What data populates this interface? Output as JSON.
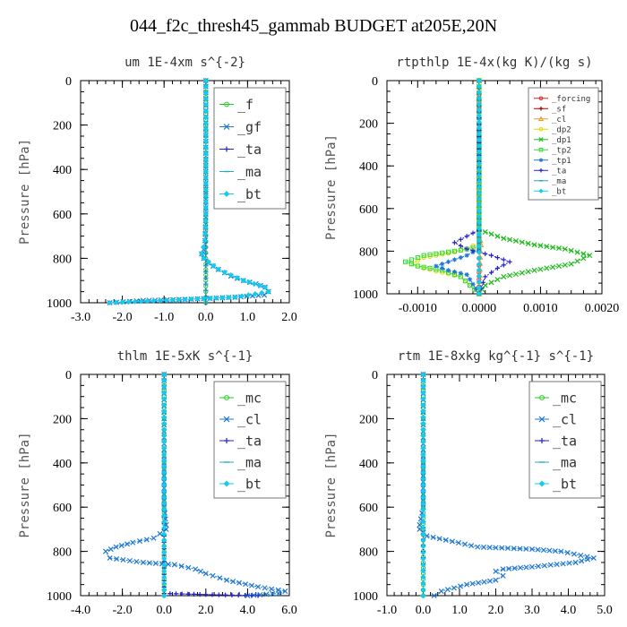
{
  "figure_title": "044_f2c_thresh45_gammab  BUDGET at205E,20N",
  "chart_data": [
    {
      "type": "line",
      "title": "um  1E-4xm s^{-2}",
      "ylabel": "Pressure [hPa]",
      "xlabel": "",
      "xlim": [
        -3.0,
        2.0
      ],
      "ylim": [
        1000,
        0
      ],
      "xticks": [
        -3.0,
        -2.0,
        -1.0,
        0.0,
        1.0,
        2.0
      ],
      "xtick_labels": [
        "-3.0",
        "-2.0",
        "-1.0",
        "0.0",
        "1.0",
        "2.0"
      ],
      "yticks": [
        0,
        200,
        400,
        600,
        800,
        1000
      ],
      "ytick_labels": [
        "0",
        "200",
        "400",
        "600",
        "800",
        "1000"
      ],
      "legend": [
        "_f",
        "_gf",
        "_ta",
        "_ma",
        "_bt"
      ],
      "legend_placement": "top-right",
      "legend_font": "large",
      "series": [
        {
          "name": "_f",
          "color": "#22cc22",
          "marker": "circle",
          "x": [
            0,
            0,
            0,
            0,
            0,
            0,
            0,
            0,
            0,
            0,
            0
          ],
          "y": [
            0,
            100,
            200,
            300,
            400,
            500,
            600,
            700,
            800,
            900,
            1000
          ]
        },
        {
          "name": "_gf",
          "color": "#1f78d1",
          "marker": "cross",
          "x": [
            0,
            0,
            0,
            -0.02,
            -0.05,
            -0.1,
            -0.05,
            0.05,
            0.3,
            0.6,
            0.9,
            1.2,
            1.42,
            1.5,
            1.4,
            0.7,
            -0.5,
            -1.5,
            -2.3
          ],
          "y": [
            0,
            300,
            600,
            720,
            760,
            780,
            800,
            820,
            850,
            880,
            900,
            915,
            930,
            950,
            965,
            975,
            985,
            990,
            1000
          ]
        },
        {
          "name": "_ta",
          "color": "#2222cc",
          "marker": "plus",
          "x": [
            0,
            0,
            0,
            0,
            0
          ],
          "y": [
            0,
            250,
            500,
            750,
            1000
          ]
        },
        {
          "name": "_ma",
          "color": "#22aacc",
          "marker": "dash",
          "x": [
            0,
            0,
            0,
            0,
            0
          ],
          "y": [
            0,
            250,
            500,
            750,
            1000
          ]
        },
        {
          "name": "_bt",
          "color": "#11ccee",
          "marker": "diamond",
          "x": [
            0,
            0,
            0,
            -0.02,
            -0.1,
            -0.05,
            0.3,
            0.9,
            1.42,
            1.5,
            0.7,
            -2.3
          ],
          "y": [
            0,
            300,
            600,
            720,
            780,
            800,
            850,
            900,
            930,
            950,
            975,
            1000
          ]
        }
      ]
    },
    {
      "type": "line",
      "title": "rtpthlp  1E-4x(kg K)/(kg s)",
      "ylabel": "Pressure [hPa]",
      "xlabel": "",
      "xlim": [
        -0.0015,
        0.002
      ],
      "ylim": [
        1000,
        0
      ],
      "xticks": [
        -0.001,
        0.0,
        0.001,
        0.002
      ],
      "xtick_labels": [
        "-0.0010",
        "0.0000",
        "0.0010",
        "0.0020"
      ],
      "yticks": [
        0,
        200,
        400,
        600,
        800,
        1000
      ],
      "ytick_labels": [
        "0",
        "200",
        "400",
        "600",
        "800",
        "1000"
      ],
      "legend": [
        "_forcing",
        "_sf",
        "_cl",
        "_dp2",
        "_dp1",
        "_tp2",
        "_tp1",
        "_ta",
        "_ma",
        "_bt"
      ],
      "legend_placement": "top-right",
      "legend_font": "small",
      "series": [
        {
          "name": "_forcing",
          "color": "#dd2222",
          "marker": "circle",
          "x": [
            0,
            0,
            0,
            0,
            0,
            0,
            0,
            0,
            0,
            0,
            0
          ],
          "y": [
            0,
            100,
            200,
            300,
            400,
            500,
            600,
            700,
            800,
            900,
            1000
          ]
        },
        {
          "name": "_sf",
          "color": "#aa0000",
          "marker": "plus",
          "x": [
            0,
            0,
            0,
            0,
            0
          ],
          "y": [
            0,
            250,
            500,
            750,
            1000
          ]
        },
        {
          "name": "_cl",
          "color": "#ee9922",
          "marker": "triangle",
          "x": [
            0,
            0,
            0,
            0,
            0,
            2e-05,
            3e-05,
            2e-05,
            0
          ],
          "y": [
            0,
            250,
            500,
            700,
            730,
            750,
            770,
            800,
            1000
          ]
        },
        {
          "name": "_dp2",
          "color": "#dddd00",
          "marker": "circle",
          "x": [
            0,
            0,
            -0.0002,
            -0.0005,
            -0.0009,
            -0.0011,
            -0.0009,
            -0.0006,
            -0.0003,
            0
          ],
          "y": [
            0,
            760,
            790,
            810,
            830,
            860,
            880,
            900,
            920,
            1000
          ]
        },
        {
          "name": "_dp1",
          "color": "#22bb22",
          "marker": "cross",
          "x": [
            0,
            0,
            0.0004,
            0.0009,
            0.0014,
            0.0018,
            0.0015,
            0.0009,
            0.0004,
            0.0001,
            0
          ],
          "y": [
            0,
            700,
            740,
            770,
            790,
            820,
            860,
            890,
            920,
            960,
            1000
          ]
        },
        {
          "name": "_tp2",
          "color": "#33dd33",
          "marker": "square",
          "x": [
            0,
            0,
            -0.0004,
            -0.0009,
            -0.0012,
            -0.001,
            -0.0006,
            -0.0003,
            0
          ],
          "y": [
            0,
            780,
            800,
            820,
            850,
            870,
            890,
            920,
            1000
          ]
        },
        {
          "name": "_tp1",
          "color": "#1f78d1",
          "marker": "star",
          "x": [
            0,
            0,
            -0.0002,
            -0.0005,
            -0.0007,
            -0.0005,
            -0.0002,
            0
          ],
          "y": [
            0,
            790,
            820,
            850,
            870,
            890,
            910,
            1000
          ]
        },
        {
          "name": "_ta",
          "color": "#2222cc",
          "marker": "plus",
          "x": [
            0,
            0,
            -0.0002,
            -0.0004,
            -0.0002,
            0.0002,
            0.0005,
            0.0003,
            0.0001,
            0
          ],
          "y": [
            0,
            700,
            730,
            760,
            790,
            820,
            850,
            880,
            920,
            1000
          ]
        },
        {
          "name": "_ma",
          "color": "#22aacc",
          "marker": "dash",
          "x": [
            0,
            0,
            0,
            0,
            0
          ],
          "y": [
            0,
            250,
            500,
            750,
            1000
          ]
        },
        {
          "name": "_bt",
          "color": "#11ccee",
          "marker": "diamond",
          "x": [
            0,
            0,
            0,
            0,
            0
          ],
          "y": [
            0,
            250,
            500,
            750,
            1000
          ]
        }
      ]
    },
    {
      "type": "line",
      "title": "thlm  1E-5xK s^{-1}",
      "ylabel": "Pressure [hPa]",
      "xlabel": "",
      "xlim": [
        -4.0,
        6.0
      ],
      "ylim": [
        1000,
        0
      ],
      "xticks": [
        -4.0,
        -2.0,
        0.0,
        2.0,
        4.0,
        6.0
      ],
      "xtick_labels": [
        "-4.0",
        "-2.0",
        "0.0",
        "2.0",
        "4.0",
        "6.0"
      ],
      "yticks": [
        0,
        200,
        400,
        600,
        800,
        1000
      ],
      "ytick_labels": [
        "0",
        "200",
        "400",
        "600",
        "800",
        "1000"
      ],
      "legend": [
        "_mc",
        "_cl",
        "_ta",
        "_ma",
        "_bt"
      ],
      "legend_placement": "top-right",
      "legend_font": "large",
      "series": [
        {
          "name": "_mc",
          "color": "#22cc22",
          "marker": "circle",
          "x": [
            0,
            0,
            0,
            0,
            0,
            0,
            0,
            0,
            0,
            0,
            0
          ],
          "y": [
            0,
            100,
            200,
            300,
            400,
            500,
            600,
            700,
            800,
            900,
            1000
          ]
        },
        {
          "name": "_cl",
          "color": "#1f78d1",
          "marker": "cross",
          "x": [
            0,
            0,
            0.1,
            0.1,
            -0.5,
            -1.5,
            -2.3,
            -2.8,
            -2.6,
            -1.0,
            0.5,
            1.5,
            2.0,
            3.0,
            4.5,
            5.8,
            5.5,
            4.0
          ],
          "y": [
            0,
            600,
            680,
            700,
            740,
            760,
            780,
            800,
            830,
            850,
            860,
            880,
            900,
            930,
            960,
            980,
            990,
            1000
          ]
        },
        {
          "name": "_ta",
          "color": "#2222cc",
          "marker": "plus",
          "x": [
            0,
            0,
            0,
            2.0,
            4.5
          ],
          "y": [
            0,
            500,
            990,
            995,
            1000
          ]
        },
        {
          "name": "_ma",
          "color": "#22aacc",
          "marker": "dash",
          "x": [
            0,
            0,
            0,
            0,
            0
          ],
          "y": [
            0,
            250,
            500,
            750,
            1000
          ]
        },
        {
          "name": "_bt",
          "color": "#11ccee",
          "marker": "diamond",
          "x": [
            0,
            0,
            0,
            0,
            0
          ],
          "y": [
            0,
            250,
            500,
            750,
            1000
          ]
        }
      ]
    },
    {
      "type": "line",
      "title": "rtm  1E-8xkg kg^{-1} s^{-1}",
      "ylabel": "Pressure [hPa]",
      "xlabel": "",
      "xlim": [
        -1.0,
        5.0
      ],
      "ylim": [
        1000,
        0
      ],
      "xticks": [
        -1.0,
        0.0,
        1.0,
        2.0,
        3.0,
        4.0,
        5.0
      ],
      "xtick_labels": [
        "-1.0",
        "0.0",
        "1.0",
        "2.0",
        "3.0",
        "4.0",
        "5.0"
      ],
      "yticks": [
        0,
        200,
        400,
        600,
        800,
        1000
      ],
      "ytick_labels": [
        "0",
        "200",
        "400",
        "600",
        "800",
        "1000"
      ],
      "legend": [
        "_mc",
        "_cl",
        "_ta",
        "_ma",
        "_bt"
      ],
      "legend_placement": "top-right",
      "legend_font": "large",
      "series": [
        {
          "name": "_mc",
          "color": "#22cc22",
          "marker": "circle",
          "x": [
            0,
            0,
            0,
            0,
            0,
            0,
            0,
            0,
            0,
            0,
            0
          ],
          "y": [
            0,
            100,
            200,
            300,
            400,
            500,
            600,
            700,
            800,
            900,
            1000
          ]
        },
        {
          "name": "_cl",
          "color": "#1f78d1",
          "marker": "cross",
          "x": [
            0,
            0,
            -0.1,
            -0.1,
            0.1,
            1.5,
            3.0,
            3.8,
            4.7,
            4.2,
            3.0,
            2.2,
            2.0,
            2.2,
            2.0,
            1.2,
            0.5,
            0.3
          ],
          "y": [
            0,
            600,
            680,
            700,
            730,
            780,
            790,
            800,
            830,
            850,
            870,
            880,
            890,
            910,
            930,
            950,
            980,
            1000
          ]
        },
        {
          "name": "_ta",
          "color": "#2222cc",
          "marker": "plus",
          "x": [
            0,
            0,
            0,
            0
          ],
          "y": [
            0,
            500,
            800,
            1000
          ]
        },
        {
          "name": "_ma",
          "color": "#22aacc",
          "marker": "dash",
          "x": [
            0,
            0,
            0,
            0,
            0
          ],
          "y": [
            0,
            250,
            500,
            750,
            1000
          ]
        },
        {
          "name": "_bt",
          "color": "#11ccee",
          "marker": "diamond",
          "x": [
            0,
            0,
            0,
            0,
            0
          ],
          "y": [
            0,
            250,
            500,
            750,
            1000
          ]
        }
      ]
    }
  ]
}
